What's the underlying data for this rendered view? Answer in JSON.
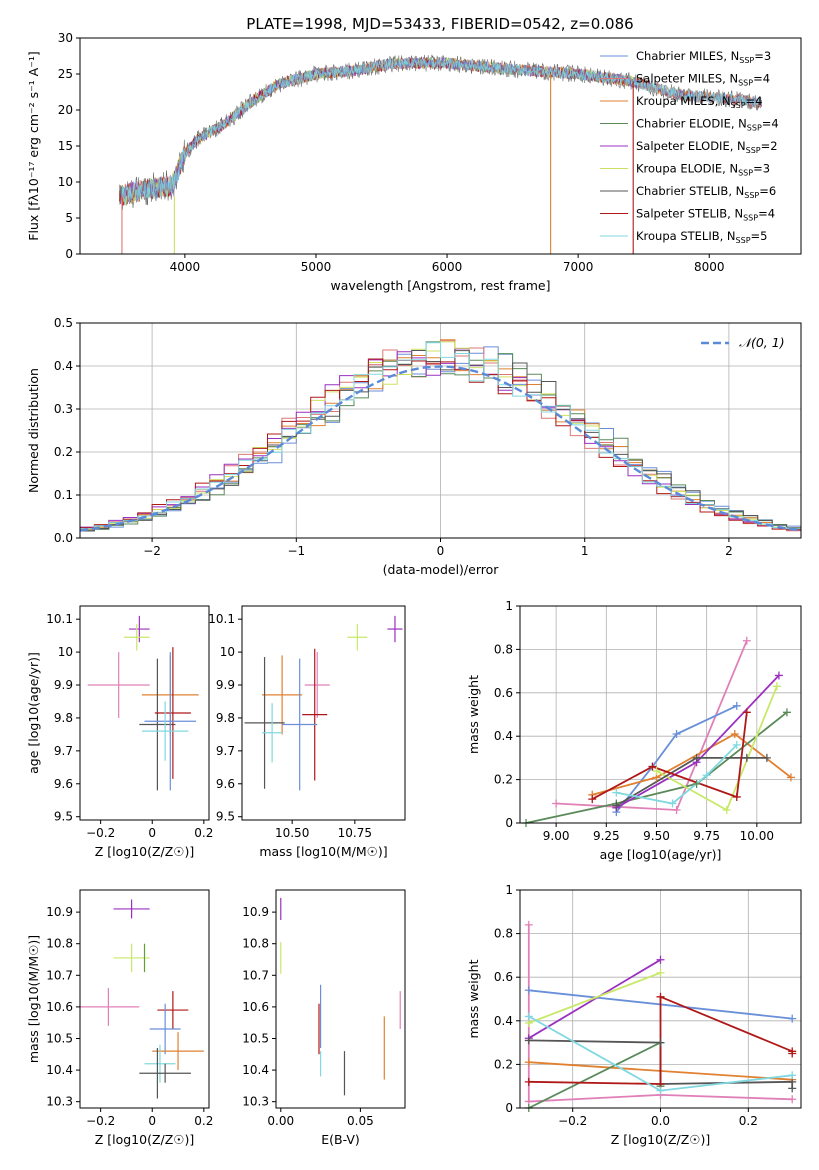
{
  "figure": {
    "title": "PLATE=1998, MJD=53433, FIBERID=0542, z=0.086"
  },
  "colors": {
    "Chabrier MILES": "#6a8fd9",
    "Salpeter MILES": "#dd7777",
    "Kroupa MILES": "#e08030",
    "Chabrier ELODIE": "#5a8a5a",
    "Salpeter ELODIE": "#9a30c0",
    "Kroupa ELODIE": "#cfe060",
    "Chabrier STELIB": "#555555",
    "Salpeter STELIB": "#b01818",
    "Kroupa STELIB": "#80d8e0",
    "pink": "#e080b8",
    "lime": "#c8e868",
    "green": "#60a030",
    "gaussian": "#5a8ad8"
  },
  "chart_data": [
    {
      "id": "spectrum",
      "type": "line",
      "xlabel": "wavelength [Angstrom, rest frame]",
      "ylabel": "Flux [fλ10⁻¹⁷ erg cm⁻² s⁻¹ A⁻¹]",
      "xlim": [
        3200,
        8700
      ],
      "ylim": [
        0,
        30
      ],
      "xticks": [
        4000,
        5000,
        6000,
        7000,
        8000
      ],
      "yticks": [
        0,
        5,
        10,
        15,
        20,
        25,
        30
      ],
      "legend_position": "top-right",
      "legend": [
        {
          "model": "Chabrier MILES",
          "nssp": "3"
        },
        {
          "model": "Salpeter MILES",
          "nssp": "4"
        },
        {
          "model": "Kroupa MILES",
          "nssp": "4"
        },
        {
          "model": "Chabrier ELODIE",
          "nssp": "4"
        },
        {
          "model": "Salpeter ELODIE",
          "nssp": "2"
        },
        {
          "model": "Kroupa ELODIE",
          "nssp": "3"
        },
        {
          "model": "Chabrier STELIB",
          "nssp": "6"
        },
        {
          "model": "Salpeter STELIB",
          "nssp": "4"
        },
        {
          "model": "Kroupa STELIB",
          "nssp": "5"
        }
      ],
      "continuum": {
        "x": [
          3500,
          3700,
          3900,
          4000,
          4100,
          4300,
          4500,
          4700,
          5000,
          5300,
          5600,
          6000,
          6300,
          6600,
          7000,
          7400,
          7800,
          8200,
          8400
        ],
        "y": [
          8,
          9,
          9.5,
          14,
          16,
          18,
          21,
          23.5,
          25,
          25.5,
          26.5,
          26.5,
          26,
          25.5,
          25,
          24,
          22,
          21.5,
          21
        ]
      },
      "spikes": [
        {
          "x": 3520,
          "y0": 0,
          "y1": 8,
          "model": "Salpeter MILES"
        },
        {
          "x": 3920,
          "y0": 0,
          "y1": 8,
          "model": "Kroupa ELODIE"
        },
        {
          "x": 6790,
          "y0": 0,
          "y1": 25,
          "model": "Kroupa MILES"
        },
        {
          "x": 7420,
          "y0": 0,
          "y1": 24,
          "model": "Salpeter STELIB"
        }
      ]
    },
    {
      "id": "residuals",
      "type": "histogram",
      "xlabel": "(data-model)/error",
      "ylabel": "Normed distribution",
      "xlim": [
        -2.5,
        2.5
      ],
      "ylim": [
        0,
        0.5
      ],
      "xticks": [
        -2,
        -1,
        0,
        1,
        2
      ],
      "yticks": [
        0.0,
        0.1,
        0.2,
        0.3,
        0.4,
        0.5
      ],
      "grid": true,
      "gaussian_label": "𝒩(0, 1)",
      "legend_position": "top-right",
      "bin_width": 0.1
    },
    {
      "id": "age-vs-Z",
      "type": "errorbar",
      "xlabel": "Z [log10(Z/Z☉)]",
      "ylabel": "age [log10(age/yr)]",
      "xlim": [
        -0.28,
        0.22
      ],
      "ylim": [
        9.49,
        10.14
      ],
      "xticks": [
        -0.2,
        0.0,
        0.2
      ],
      "yticks": [
        9.5,
        9.6,
        9.7,
        9.8,
        9.9,
        10.0,
        10.1
      ],
      "points": [
        {
          "x": -0.05,
          "y": 10.07,
          "xerr": 0.04,
          "yerr": 0.04,
          "color": "Salpeter ELODIE"
        },
        {
          "x": -0.06,
          "y": 10.045,
          "xerr": 0.05,
          "yerr": 0.04,
          "color": "lime"
        },
        {
          "x": -0.13,
          "y": 9.9,
          "xerr": 0.12,
          "yerr": 0.1,
          "color": "pink"
        },
        {
          "x": 0.07,
          "y": 9.87,
          "xerr": 0.11,
          "yerr": 0.12,
          "color": "Kroupa MILES"
        },
        {
          "x": 0.02,
          "y": 9.78,
          "xerr": 0.07,
          "yerr": 0.2,
          "color": "Chabrier STELIB"
        },
        {
          "x": 0.08,
          "y": 9.815,
          "xerr": 0.07,
          "yerr": 0.2,
          "color": "Salpeter STELIB"
        },
        {
          "x": 0.07,
          "y": 9.79,
          "xerr": 0.1,
          "yerr": 0.21,
          "color": "Chabrier MILES"
        },
        {
          "x": 0.05,
          "y": 9.76,
          "xerr": 0.09,
          "yerr": 0.09,
          "color": "Kroupa STELIB"
        }
      ]
    },
    {
      "id": "age-vs-mass",
      "type": "errorbar",
      "xlabel": "mass [log10(M/M☉)]",
      "ylabel": "",
      "xlim": [
        10.3,
        10.95
      ],
      "ylim": [
        9.49,
        10.14
      ],
      "xticks": [
        10.5,
        10.75
      ],
      "xticklabels": [
        "10.50",
        "10.75"
      ],
      "yticks": [
        9.5,
        9.6,
        9.7,
        9.8,
        9.9,
        10.0,
        10.1
      ],
      "points": [
        {
          "x": 10.91,
          "y": 10.07,
          "xerr": 0.03,
          "yerr": 0.04,
          "color": "Salpeter ELODIE"
        },
        {
          "x": 10.76,
          "y": 10.045,
          "xerr": 0.04,
          "yerr": 0.04,
          "color": "lime"
        },
        {
          "x": 10.6,
          "y": 9.9,
          "xerr": 0.05,
          "yerr": 0.1,
          "color": "pink"
        },
        {
          "x": 10.46,
          "y": 9.87,
          "xerr": 0.08,
          "yerr": 0.12,
          "color": "Kroupa MILES"
        },
        {
          "x": 10.39,
          "y": 9.785,
          "xerr": 0.08,
          "yerr": 0.2,
          "color": "Chabrier STELIB"
        },
        {
          "x": 10.59,
          "y": 9.81,
          "xerr": 0.05,
          "yerr": 0.2,
          "color": "Salpeter STELIB"
        },
        {
          "x": 10.53,
          "y": 9.78,
          "xerr": 0.07,
          "yerr": 0.2,
          "color": "Chabrier MILES"
        },
        {
          "x": 10.42,
          "y": 9.755,
          "xerr": 0.04,
          "yerr": 0.09,
          "color": "Kroupa STELIB"
        }
      ]
    },
    {
      "id": "massweight-vs-age",
      "type": "line",
      "xlabel": "age [log10(age/yr)]",
      "ylabel": "mass weight",
      "xlim": [
        8.82,
        10.22
      ],
      "ylim": [
        0,
        1
      ],
      "xticks": [
        9.0,
        9.25,
        9.5,
        9.75,
        10.0
      ],
      "xticklabels": [
        "9.00",
        "9.25",
        "9.50",
        "9.75",
        "10.00"
      ],
      "yticks": [
        0.0,
        0.2,
        0.4,
        0.6,
        0.8,
        1.0
      ],
      "grid": true,
      "series": [
        {
          "color": "pink",
          "x": [
            9.0,
            9.6,
            9.95
          ],
          "y": [
            0.09,
            0.06,
            0.84
          ]
        },
        {
          "color": "Chabrier MILES",
          "x": [
            9.3,
            9.48,
            9.6,
            9.9
          ],
          "y": [
            0.05,
            0.26,
            0.41,
            0.54
          ]
        },
        {
          "color": "Kroupa MILES",
          "x": [
            9.18,
            9.5,
            9.89,
            10.17
          ],
          "y": [
            0.13,
            0.21,
            0.41,
            0.21
          ]
        },
        {
          "color": "Chabrier ELODIE",
          "x": [
            8.85,
            9.3,
            9.7,
            10.15
          ],
          "y": [
            0.0,
            0.09,
            0.18,
            0.51
          ]
        },
        {
          "color": "Salpeter ELODIE",
          "x": [
            9.3,
            9.7,
            10.11
          ],
          "y": [
            0.07,
            0.28,
            0.68
          ]
        },
        {
          "color": "lime",
          "x": [
            9.5,
            9.85,
            10.1
          ],
          "y": [
            0.24,
            0.06,
            0.63
          ]
        },
        {
          "color": "Chabrier STELIB",
          "x": [
            9.3,
            9.7,
            9.95,
            10.05
          ],
          "y": [
            0.08,
            0.3,
            0.3,
            0.3
          ]
        },
        {
          "color": "Salpeter STELIB",
          "x": [
            9.18,
            9.48,
            9.9,
            9.95
          ],
          "y": [
            0.11,
            0.26,
            0.12,
            0.51
          ]
        },
        {
          "color": "Kroupa STELIB",
          "x": [
            9.3,
            9.58,
            9.75,
            9.9
          ],
          "y": [
            0.14,
            0.09,
            0.22,
            0.36
          ]
        }
      ]
    },
    {
      "id": "mass-vs-Z",
      "type": "errorbar",
      "xlabel": "Z [log10(Z/Z☉)]",
      "ylabel": "mass [log10(M/M☉)]",
      "xlim": [
        -0.28,
        0.22
      ],
      "ylim": [
        10.28,
        10.97
      ],
      "xticks": [
        -0.2,
        0.0,
        0.2
      ],
      "yticks": [
        10.3,
        10.4,
        10.5,
        10.6,
        10.7,
        10.8,
        10.9
      ],
      "points": [
        {
          "x": -0.08,
          "y": 10.91,
          "xerr": 0.07,
          "yerr": 0.03,
          "color": "Salpeter ELODIE"
        },
        {
          "x": -0.08,
          "y": 10.755,
          "xerr": 0.07,
          "yerr": 0.045,
          "color": "lime"
        },
        {
          "x": -0.03,
          "y": 10.755,
          "xerr": 0.0,
          "yerr": 0.045,
          "color": "green"
        },
        {
          "x": -0.17,
          "y": 10.6,
          "xerr": 0.12,
          "yerr": 0.06,
          "color": "pink"
        },
        {
          "x": 0.08,
          "y": 10.59,
          "xerr": 0.06,
          "yerr": 0.06,
          "color": "Salpeter STELIB"
        },
        {
          "x": 0.05,
          "y": 10.53,
          "xerr": 0.06,
          "yerr": 0.08,
          "color": "Chabrier MILES"
        },
        {
          "x": 0.1,
          "y": 10.46,
          "xerr": 0.1,
          "yerr": 0.06,
          "color": "Kroupa MILES"
        },
        {
          "x": 0.03,
          "y": 10.42,
          "xerr": 0.06,
          "yerr": 0.06,
          "color": "Kroupa STELIB"
        },
        {
          "x": 0.05,
          "y": 10.39,
          "xerr": 0.1,
          "yerr": 0.03,
          "color": "Chabrier STELIB"
        },
        {
          "x": 0.02,
          "y": 10.39,
          "xerr": 0.0,
          "yerr": 0.08,
          "color": "Chabrier STELIB"
        }
      ]
    },
    {
      "id": "mass-vs-EBV",
      "type": "errorbar",
      "xlabel": "E(B-V)",
      "ylabel": "",
      "xlim": [
        -0.003,
        0.078
      ],
      "ylim": [
        10.28,
        10.97
      ],
      "xticks": [
        0.0,
        0.05
      ],
      "xticklabels": [
        "0.00",
        "0.05"
      ],
      "yticks": [
        10.3,
        10.4,
        10.5,
        10.6,
        10.7,
        10.8,
        10.9
      ],
      "points": [
        {
          "x": 0.0,
          "y": 10.91,
          "xerr": 0,
          "yerr": 0.035,
          "color": "Salpeter ELODIE"
        },
        {
          "x": 0.0,
          "y": 10.755,
          "xerr": 0,
          "yerr": 0.05,
          "color": "lime"
        },
        {
          "x": 0.025,
          "y": 10.57,
          "xerr": 0,
          "yerr": 0.1,
          "color": "Chabrier MILES"
        },
        {
          "x": 0.024,
          "y": 10.53,
          "xerr": 0,
          "yerr": 0.08,
          "color": "Salpeter STELIB"
        },
        {
          "x": 0.025,
          "y": 10.42,
          "xerr": 0,
          "yerr": 0.04,
          "color": "Kroupa STELIB"
        },
        {
          "x": 0.04,
          "y": 10.39,
          "xerr": 0,
          "yerr": 0.07,
          "color": "Chabrier STELIB"
        },
        {
          "x": 0.065,
          "y": 10.47,
          "xerr": 0,
          "yerr": 0.1,
          "color": "Kroupa MILES"
        },
        {
          "x": 0.075,
          "y": 10.59,
          "xerr": 0,
          "yerr": 0.06,
          "color": "pink"
        }
      ]
    },
    {
      "id": "massweight-vs-Z",
      "type": "line",
      "xlabel": "Z [log10(Z/Z☉)]",
      "ylabel": "mass weight",
      "xlim": [
        -0.32,
        0.32
      ],
      "ylim": [
        0,
        1
      ],
      "xticks": [
        -0.2,
        0.0,
        0.2
      ],
      "xticklabels": [
        "−0.2",
        "0.0",
        "0.2"
      ],
      "yticks": [
        0.0,
        0.2,
        0.4,
        0.6,
        0.8,
        1.0
      ],
      "grid": true,
      "series": [
        {
          "color": "pink",
          "x": [
            -0.3,
            -0.3,
            0.0,
            0.3
          ],
          "y": [
            0.84,
            0.03,
            0.06,
            0.04
          ]
        },
        {
          "color": "Chabrier MILES",
          "x": [
            -0.3,
            0.3
          ],
          "y": [
            0.54,
            0.41
          ]
        },
        {
          "color": "Kroupa MILES",
          "x": [
            -0.3,
            0.3
          ],
          "y": [
            0.21,
            0.13
          ]
        },
        {
          "color": "Chabrier ELODIE",
          "x": [
            -0.3,
            0.0,
            0.0
          ],
          "y": [
            0.0,
            0.3,
            0.1
          ]
        },
        {
          "color": "Salpeter ELODIE",
          "x": [
            -0.3,
            0.0
          ],
          "y": [
            0.32,
            0.68
          ]
        },
        {
          "color": "lime",
          "x": [
            -0.3,
            0.0
          ],
          "y": [
            0.39,
            0.62
          ]
        },
        {
          "color": "Chabrier STELIB",
          "x": [
            -0.3,
            0.0,
            0.0,
            0.3,
            0.3
          ],
          "y": [
            0.31,
            0.3,
            0.11,
            0.12,
            0.09
          ]
        },
        {
          "color": "Salpeter STELIB",
          "x": [
            -0.3,
            0.0,
            0.0,
            0.3,
            0.3
          ],
          "y": [
            0.12,
            0.11,
            0.51,
            0.26,
            0.25
          ]
        },
        {
          "color": "Kroupa STELIB",
          "x": [
            -0.3,
            0.0,
            0.3
          ],
          "y": [
            0.42,
            0.08,
            0.15
          ]
        }
      ]
    }
  ]
}
